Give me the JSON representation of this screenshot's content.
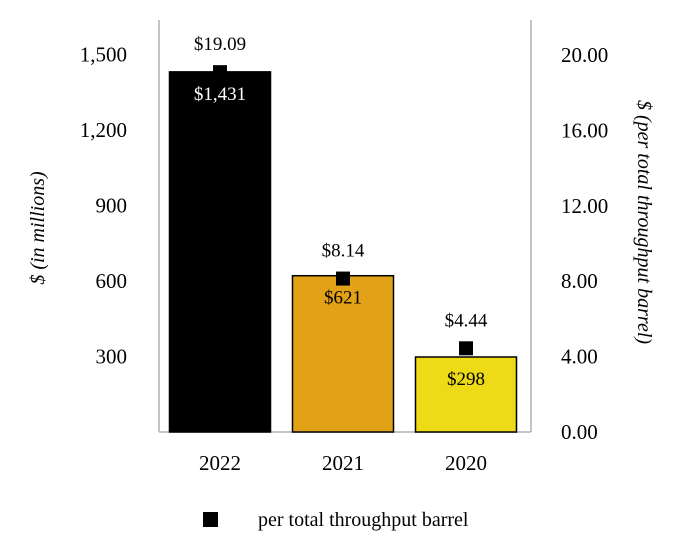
{
  "chart_data": {
    "type": "bar",
    "categories": [
      "2022",
      "2021",
      "2020"
    ],
    "series": [
      {
        "type": "bar",
        "values": [
          1431,
          621,
          298
        ],
        "labels": [
          "$1,431",
          "$621",
          "$298"
        ],
        "colors": [
          "#000000",
          "#e2a218",
          "#eedb17"
        ],
        "label_colors": [
          "#ffffff",
          "#000000",
          "#000000"
        ]
      },
      {
        "name": "per total throughput barrel",
        "type": "scatter",
        "axis": "right",
        "values": [
          19.09,
          8.14,
          4.44
        ],
        "labels": [
          "$19.09",
          "$8.14",
          "$4.44"
        ],
        "color": "#000000",
        "marker": "square"
      }
    ],
    "y_left": {
      "label": "$ (in millions)",
      "ticks": [
        "300",
        "600",
        "900",
        "1,200",
        "1,500"
      ],
      "tick_values": [
        300,
        600,
        900,
        1200,
        1500
      ]
    },
    "y_right": {
      "label": "$ (per total throughput barrel)",
      "ticks": [
        "0.00",
        "4.00",
        "8.00",
        "12.00",
        "16.00",
        "20.00"
      ],
      "tick_values": [
        0,
        4,
        8,
        12,
        16,
        20
      ],
      "ylim": [
        0,
        20
      ]
    },
    "grid": false,
    "legend": "bottom"
  }
}
